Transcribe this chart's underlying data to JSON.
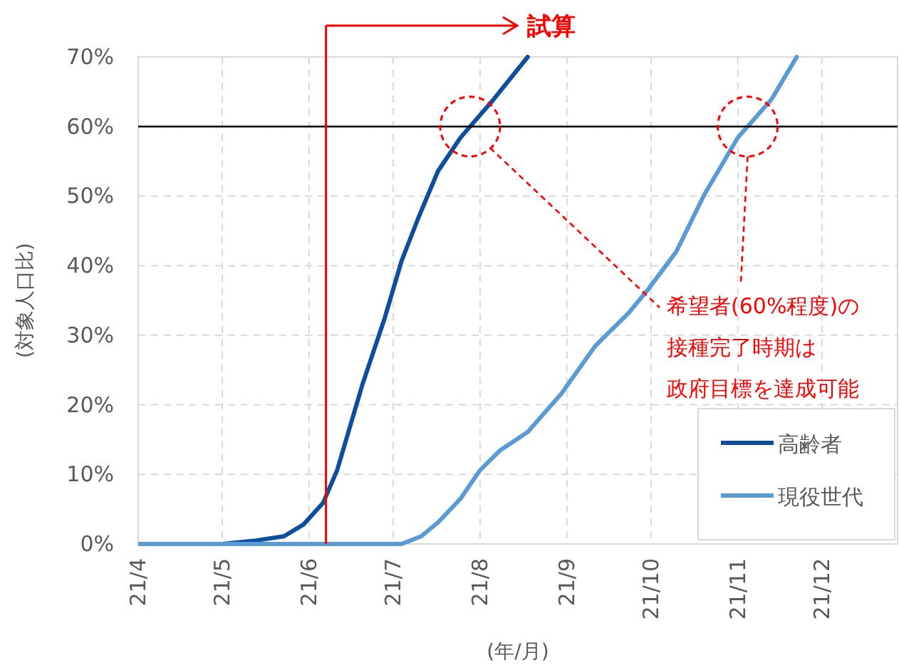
{
  "chart_data": {
    "type": "line",
    "xlabel": "(年/月)",
    "ylabel": "(対象人口比)",
    "xlim": [
      "--04-01",
      "--12-28"
    ],
    "ylim": [
      0,
      70
    ],
    "xticks": [
      {
        "value": "--04-01",
        "label": "21/4"
      },
      {
        "value": "--05-01",
        "label": "21/5"
      },
      {
        "value": "--06-01",
        "label": "21/6"
      },
      {
        "value": "--07-01",
        "label": "21/7"
      },
      {
        "value": "--08-01",
        "label": "21/8"
      },
      {
        "value": "--09-01",
        "label": "21/9"
      },
      {
        "value": "--10-01",
        "label": "21/10"
      },
      {
        "value": "--11-01",
        "label": "21/11"
      },
      {
        "value": "--12-01",
        "label": "21/12"
      }
    ],
    "yticks": [
      {
        "value": 0,
        "label": "0%"
      },
      {
        "value": 10,
        "label": "10%"
      },
      {
        "value": 20,
        "label": "20%"
      },
      {
        "value": 30,
        "label": "30%"
      },
      {
        "value": 40,
        "label": "40%"
      },
      {
        "value": 50,
        "label": "50%"
      },
      {
        "value": 60,
        "label": "60%"
      },
      {
        "value": 70,
        "label": "70%"
      }
    ],
    "grid": true,
    "legend": "bottom right",
    "line_style": "solid",
    "marker": "none",
    "series": [
      {
        "name": "高齢者",
        "color": "#0d4f9c",
        "x": [
          "--04-01",
          "--05-01",
          "--05-13",
          "--05-23",
          "--05-30",
          "--06-06",
          "--06-11",
          "--06-20",
          "--06-28",
          "--07-04",
          "--07-10",
          "--07-17",
          "--07-25",
          "--08-05",
          "--08-18"
        ],
        "values": [
          0,
          0,
          0.5,
          1.1,
          2.8,
          5.9,
          10.6,
          22.9,
          32.5,
          40.7,
          46.9,
          53.6,
          58.4,
          63.5,
          70
        ]
      },
      {
        "name": "現役世代",
        "color": "#5b9bd5",
        "x": [
          "--04-01",
          "--07-04",
          "--07-11",
          "--07-17",
          "--07-25",
          "--08-01",
          "--08-08",
          "--08-18",
          "--08-30",
          "--09-11",
          "--09-23",
          "--09-30",
          "--10-10",
          "--10-20",
          "--11-01",
          "--11-13",
          "--11-22"
        ],
        "values": [
          0,
          0,
          1.1,
          3.1,
          6.5,
          10.6,
          13.4,
          16.1,
          21.6,
          28.4,
          33.2,
          36.6,
          42,
          50.2,
          58.4,
          63.9,
          70
        ]
      }
    ],
    "ref_lines": [
      {
        "axis": "y",
        "value": 60,
        "color": "#000000"
      },
      {
        "axis": "x",
        "value": "--06-07",
        "label": "試算",
        "color": "#ff0000"
      }
    ],
    "annotations": [
      "希望者(60%程度)の接種完了時期は政府目標を達成可能"
    ]
  }
}
